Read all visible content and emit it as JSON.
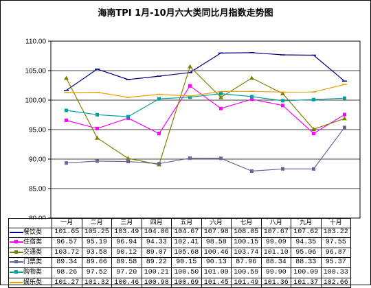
{
  "chart_data": {
    "type": "line",
    "title": "海南TPI 1月-10月六大类同比月指数走势图",
    "categories": [
      "一月",
      "二月",
      "三月",
      "四月",
      "五月",
      "六月",
      "七月",
      "八月",
      "九月",
      "十月"
    ],
    "ylim": [
      80,
      110
    ],
    "yticks": [
      "80.00",
      "85.00",
      "90.00",
      "95.00",
      "100.00",
      "105.00",
      "110.00"
    ],
    "grid": true,
    "series": [
      {
        "name": "餐饮类",
        "color": "#000080",
        "marker": "dash",
        "values": [
          101.65,
          105.25,
          103.49,
          104.06,
          104.67,
          107.98,
          108.05,
          107.67,
          107.62,
          103.22
        ],
        "labels": [
          "101.65",
          "105.25",
          "103.49",
          "104.06",
          "104.67",
          "107.98",
          "108.05",
          "107.67",
          "107.62",
          "103.22"
        ]
      },
      {
        "name": "住宿类",
        "color": "#ff00ff",
        "marker": "square",
        "values": [
          96.57,
          95.19,
          96.94,
          94.33,
          102.41,
          98.58,
          100.15,
          99.09,
          94.35,
          97.55
        ],
        "labels": [
          "96.57",
          "95.19",
          "96.94",
          "94.33",
          "102.41",
          "98.58",
          "100.15",
          "99.09",
          "94.35",
          "97.55"
        ]
      },
      {
        "name": "交通类",
        "color": "#808000",
        "marker": "triangle",
        "values": [
          103.72,
          93.58,
          90.12,
          89.07,
          105.68,
          100.46,
          103.74,
          101.1,
          95.06,
          96.87
        ],
        "labels": [
          "103.72",
          "93.58",
          "90.12",
          "89.07",
          "105.68",
          "100.46",
          "103.74",
          "101.10",
          "95.06",
          "96.87"
        ]
      },
      {
        "name": "门票类",
        "color": "#666699",
        "marker": "square",
        "values": [
          89.34,
          89.66,
          89.58,
          89.22,
          90.15,
          90.13,
          87.96,
          88.34,
          88.33,
          95.37
        ],
        "labels": [
          "89.34",
          "89.66",
          "89.58",
          "89.22",
          "90.15",
          "90.13",
          "87.96",
          "88.34",
          "88.33",
          "95.37"
        ]
      },
      {
        "name": "购物类",
        "color": "#00a0a0",
        "marker": "square",
        "values": [
          98.26,
          97.52,
          97.2,
          100.21,
          100.5,
          101.09,
          100.59,
          99.9,
          100.09,
          100.33
        ],
        "labels": [
          "98.26",
          "97.52",
          "97.20",
          "100.21",
          "100.50",
          "101.09",
          "100.59",
          "99.90",
          "100.09",
          "100.33"
        ]
      },
      {
        "name": "娱乐类",
        "color": "#e8a000",
        "marker": "dash",
        "values": [
          101.27,
          101.32,
          100.46,
          100.98,
          100.69,
          101.45,
          101.49,
          101.36,
          101.37,
          102.66
        ],
        "labels": [
          "101.27",
          "101.32",
          "100.46",
          "100.98",
          "100.69",
          "101.45",
          "101.49",
          "101.36",
          "101.37",
          "102.66"
        ]
      }
    ]
  }
}
